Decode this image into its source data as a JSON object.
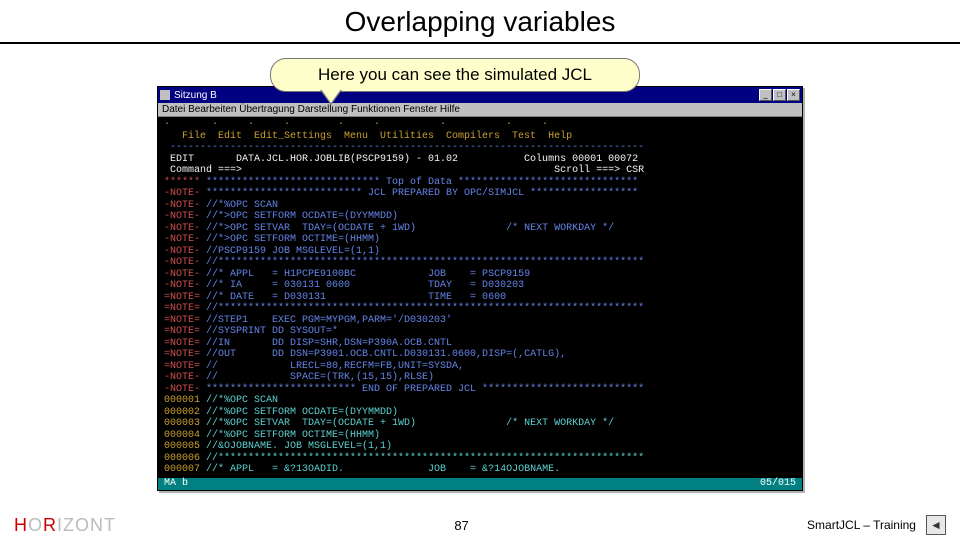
{
  "slide": {
    "title": "Overlapping variables",
    "callout": "Here you can see the simulated JCL",
    "page_number": "87"
  },
  "footer": {
    "logo_letters": [
      "H",
      "O",
      "R",
      "I",
      "Z",
      "O",
      "N",
      "T"
    ],
    "right_label": "SmartJCL – Training",
    "back_icon": "◄"
  },
  "window": {
    "title": "Sitzung B",
    "controls": {
      "min": "_",
      "max": "□",
      "close": "×"
    },
    "menubar": "Datei  Bearbeiten  Übertragung  Darstellung  Funktionen  Fenster  Hilfe",
    "statusbar_left": "MA    b",
    "statusbar_right": "05/015"
  },
  "terminal": {
    "spacer_row": "·       ·     ·     ·        ·     ·          ·          ·     ·",
    "header_row": "   File  Edit  Edit_Settings  Menu  Utilities  Compilers  Test  Help",
    "sep_row": " -------------------------------------------------------------------------------",
    "edit_row1": " EDIT       DATA.JCL.HOR.JOBLIB(PSCP9159) - 01.02           Columns 00001 00072",
    "edit_row2_left": " Command ===>",
    "edit_row2_right": "Scroll ===> CSR",
    "lines": [
      {
        "lbl": "******",
        "cls": "c-red",
        "txt": " ***************************** Top of Data ******************************",
        "tcls": "c-blue"
      },
      {
        "lbl": "-NOTE-",
        "cls": "c-red",
        "txt": " ************************** JCL PREPARED BY OPC/SIMJCL ******************",
        "tcls": "c-blue"
      },
      {
        "lbl": "-NOTE-",
        "cls": "c-red",
        "txt": " //*%OPC SCAN",
        "tcls": "c-blue"
      },
      {
        "lbl": "-NOTE-",
        "cls": "c-red",
        "txt": " //*>OPC SETFORM OCDATE=(DYYMMDD)",
        "tcls": "c-blue"
      },
      {
        "lbl": "-NOTE-",
        "cls": "c-red",
        "txt": " //*>OPC SETVAR  TDAY=(OCDATE + 1WD)               /* NEXT WORKDAY */",
        "tcls": "c-blue"
      },
      {
        "lbl": "-NOTE-",
        "cls": "c-red",
        "txt": " //*>OPC SETFORM OCTIME=(HHMM)",
        "tcls": "c-blue"
      },
      {
        "lbl": "-NOTE-",
        "cls": "c-red",
        "txt": " //PSCP9159 JOB MSGLEVEL=(1,1)",
        "tcls": "c-blue"
      },
      {
        "lbl": "-NOTE-",
        "cls": "c-red",
        "txt": " //***********************************************************************",
        "tcls": "c-blue"
      },
      {
        "lbl": "-NOTE-",
        "cls": "c-red",
        "txt": " //* APPL   = H1PCPE9100BC            JOB    = PSCP9159",
        "tcls": "c-blue"
      },
      {
        "lbl": "-NOTE-",
        "cls": "c-red",
        "txt": " //* IA     = 030131 0600             TDAY   = D030203",
        "tcls": "c-blue"
      },
      {
        "lbl": "=NOTE=",
        "cls": "c-red",
        "txt": " //* DATE   = D030131                 TIME   = 0600",
        "tcls": "c-blue"
      },
      {
        "lbl": "=NOTE=",
        "cls": "c-red",
        "txt": " //***********************************************************************",
        "tcls": "c-blue"
      },
      {
        "lbl": "=NOTE=",
        "cls": "c-red",
        "txt": " //STEP1    EXEC PGM=MYPGM,PARM='/D030203'",
        "tcls": "c-blue"
      },
      {
        "lbl": "=NOTE=",
        "cls": "c-red",
        "txt": " //SYSPRINT DD SYSOUT=*",
        "tcls": "c-blue"
      },
      {
        "lbl": "=NOTE=",
        "cls": "c-red",
        "txt": " //IN       DD DISP=SHR,DSN=P390A.OCB.CNTL",
        "tcls": "c-blue"
      },
      {
        "lbl": "=NOTE=",
        "cls": "c-red",
        "txt": " //OUT      DD DSN=P3901.OCB.CNTL.D030131.0600,DISP=(,CATLG),",
        "tcls": "c-blue"
      },
      {
        "lbl": "=NOTE=",
        "cls": "c-red",
        "txt": " //            LRECL=80,RECFM=FB,UNIT=SYSDA,",
        "tcls": "c-blue"
      },
      {
        "lbl": "-NOTE-",
        "cls": "c-red",
        "txt": " //            SPACE=(TRK,(15,15),RLSE)",
        "tcls": "c-blue"
      },
      {
        "lbl": "-NOTE-",
        "cls": "c-red",
        "txt": " ************************* END OF PREPARED JCL ***************************",
        "tcls": "c-blue"
      },
      {
        "lbl": "000001",
        "cls": "c-gold",
        "txt": " //*%OPC SCAN",
        "tcls": "c-cyan"
      },
      {
        "lbl": "000002",
        "cls": "c-gold",
        "txt": " //*%OPC SETFORM OCDATE=(DYYMMDD)",
        "tcls": "c-cyan"
      },
      {
        "lbl": "000003",
        "cls": "c-gold",
        "txt": " //*%OPC SETVAR  TDAY=(OCDATE + 1WD)               /* NEXT WORKDAY */",
        "tcls": "c-cyan"
      },
      {
        "lbl": "000004",
        "cls": "c-gold",
        "txt": " //*%OPC SETFORM OCTIME=(HHMM)",
        "tcls": "c-cyan"
      },
      {
        "lbl": "000005",
        "cls": "c-gold",
        "txt": " //&OJOBNAME. JOB MSGLEVEL=(1,1)",
        "tcls": "c-cyan"
      },
      {
        "lbl": "000006",
        "cls": "c-gold",
        "txt": " //***********************************************************************",
        "tcls": "c-cyan"
      },
      {
        "lbl": "000007",
        "cls": "c-gold",
        "txt": " //* APPL   = &?13OADID.              JOB    = &?14OJOBNAME.",
        "tcls": "c-cyan"
      }
    ]
  }
}
